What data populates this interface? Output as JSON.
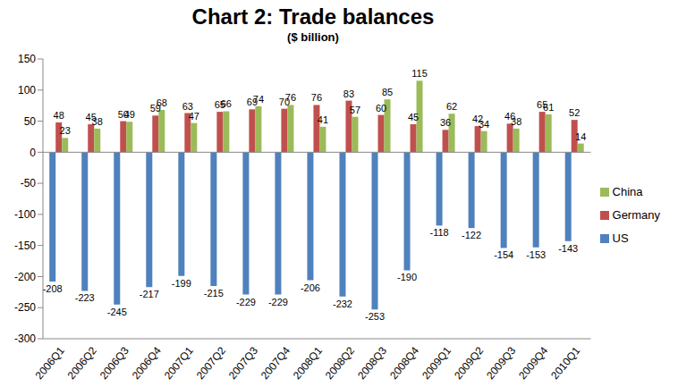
{
  "chart_data": {
    "type": "bar",
    "title": "Chart  2: Trade balances",
    "subtitle": "($ billion)",
    "categories": [
      "2006Q1",
      "2006Q2",
      "2006Q3",
      "2006Q4",
      "2007Q1",
      "2007Q2",
      "2007Q3",
      "2007Q4",
      "2008Q1",
      "2008Q2",
      "2008Q3",
      "2008Q4",
      "2009Q1",
      "2009Q2",
      "2009Q3",
      "2009Q4",
      "2010Q1"
    ],
    "series": [
      {
        "name": "US",
        "color": "#4F81BD",
        "values": [
          -208,
          -223,
          -245,
          -217,
          -199,
          -215,
          -229,
          -229,
          -206,
          -232,
          -253,
          -190,
          -118,
          -122,
          -154,
          -153,
          -143
        ]
      },
      {
        "name": "Germany",
        "color": "#C0504D",
        "values": [
          48,
          45,
          50,
          59,
          63,
          65,
          69,
          70,
          76,
          83,
          60,
          45,
          36,
          42,
          46,
          65,
          52
        ]
      },
      {
        "name": "China",
        "color": "#9BBB59",
        "values": [
          23,
          38,
          49,
          68,
          47,
          66,
          74,
          76,
          41,
          57,
          85,
          115,
          62,
          34,
          38,
          61,
          14
        ]
      }
    ],
    "ylim": [
      -300,
      150
    ],
    "yticks": [
      -300,
      -250,
      -200,
      -150,
      -100,
      -50,
      0,
      50,
      100,
      150
    ],
    "grid": false,
    "legend": "right",
    "data_labels": true
  }
}
